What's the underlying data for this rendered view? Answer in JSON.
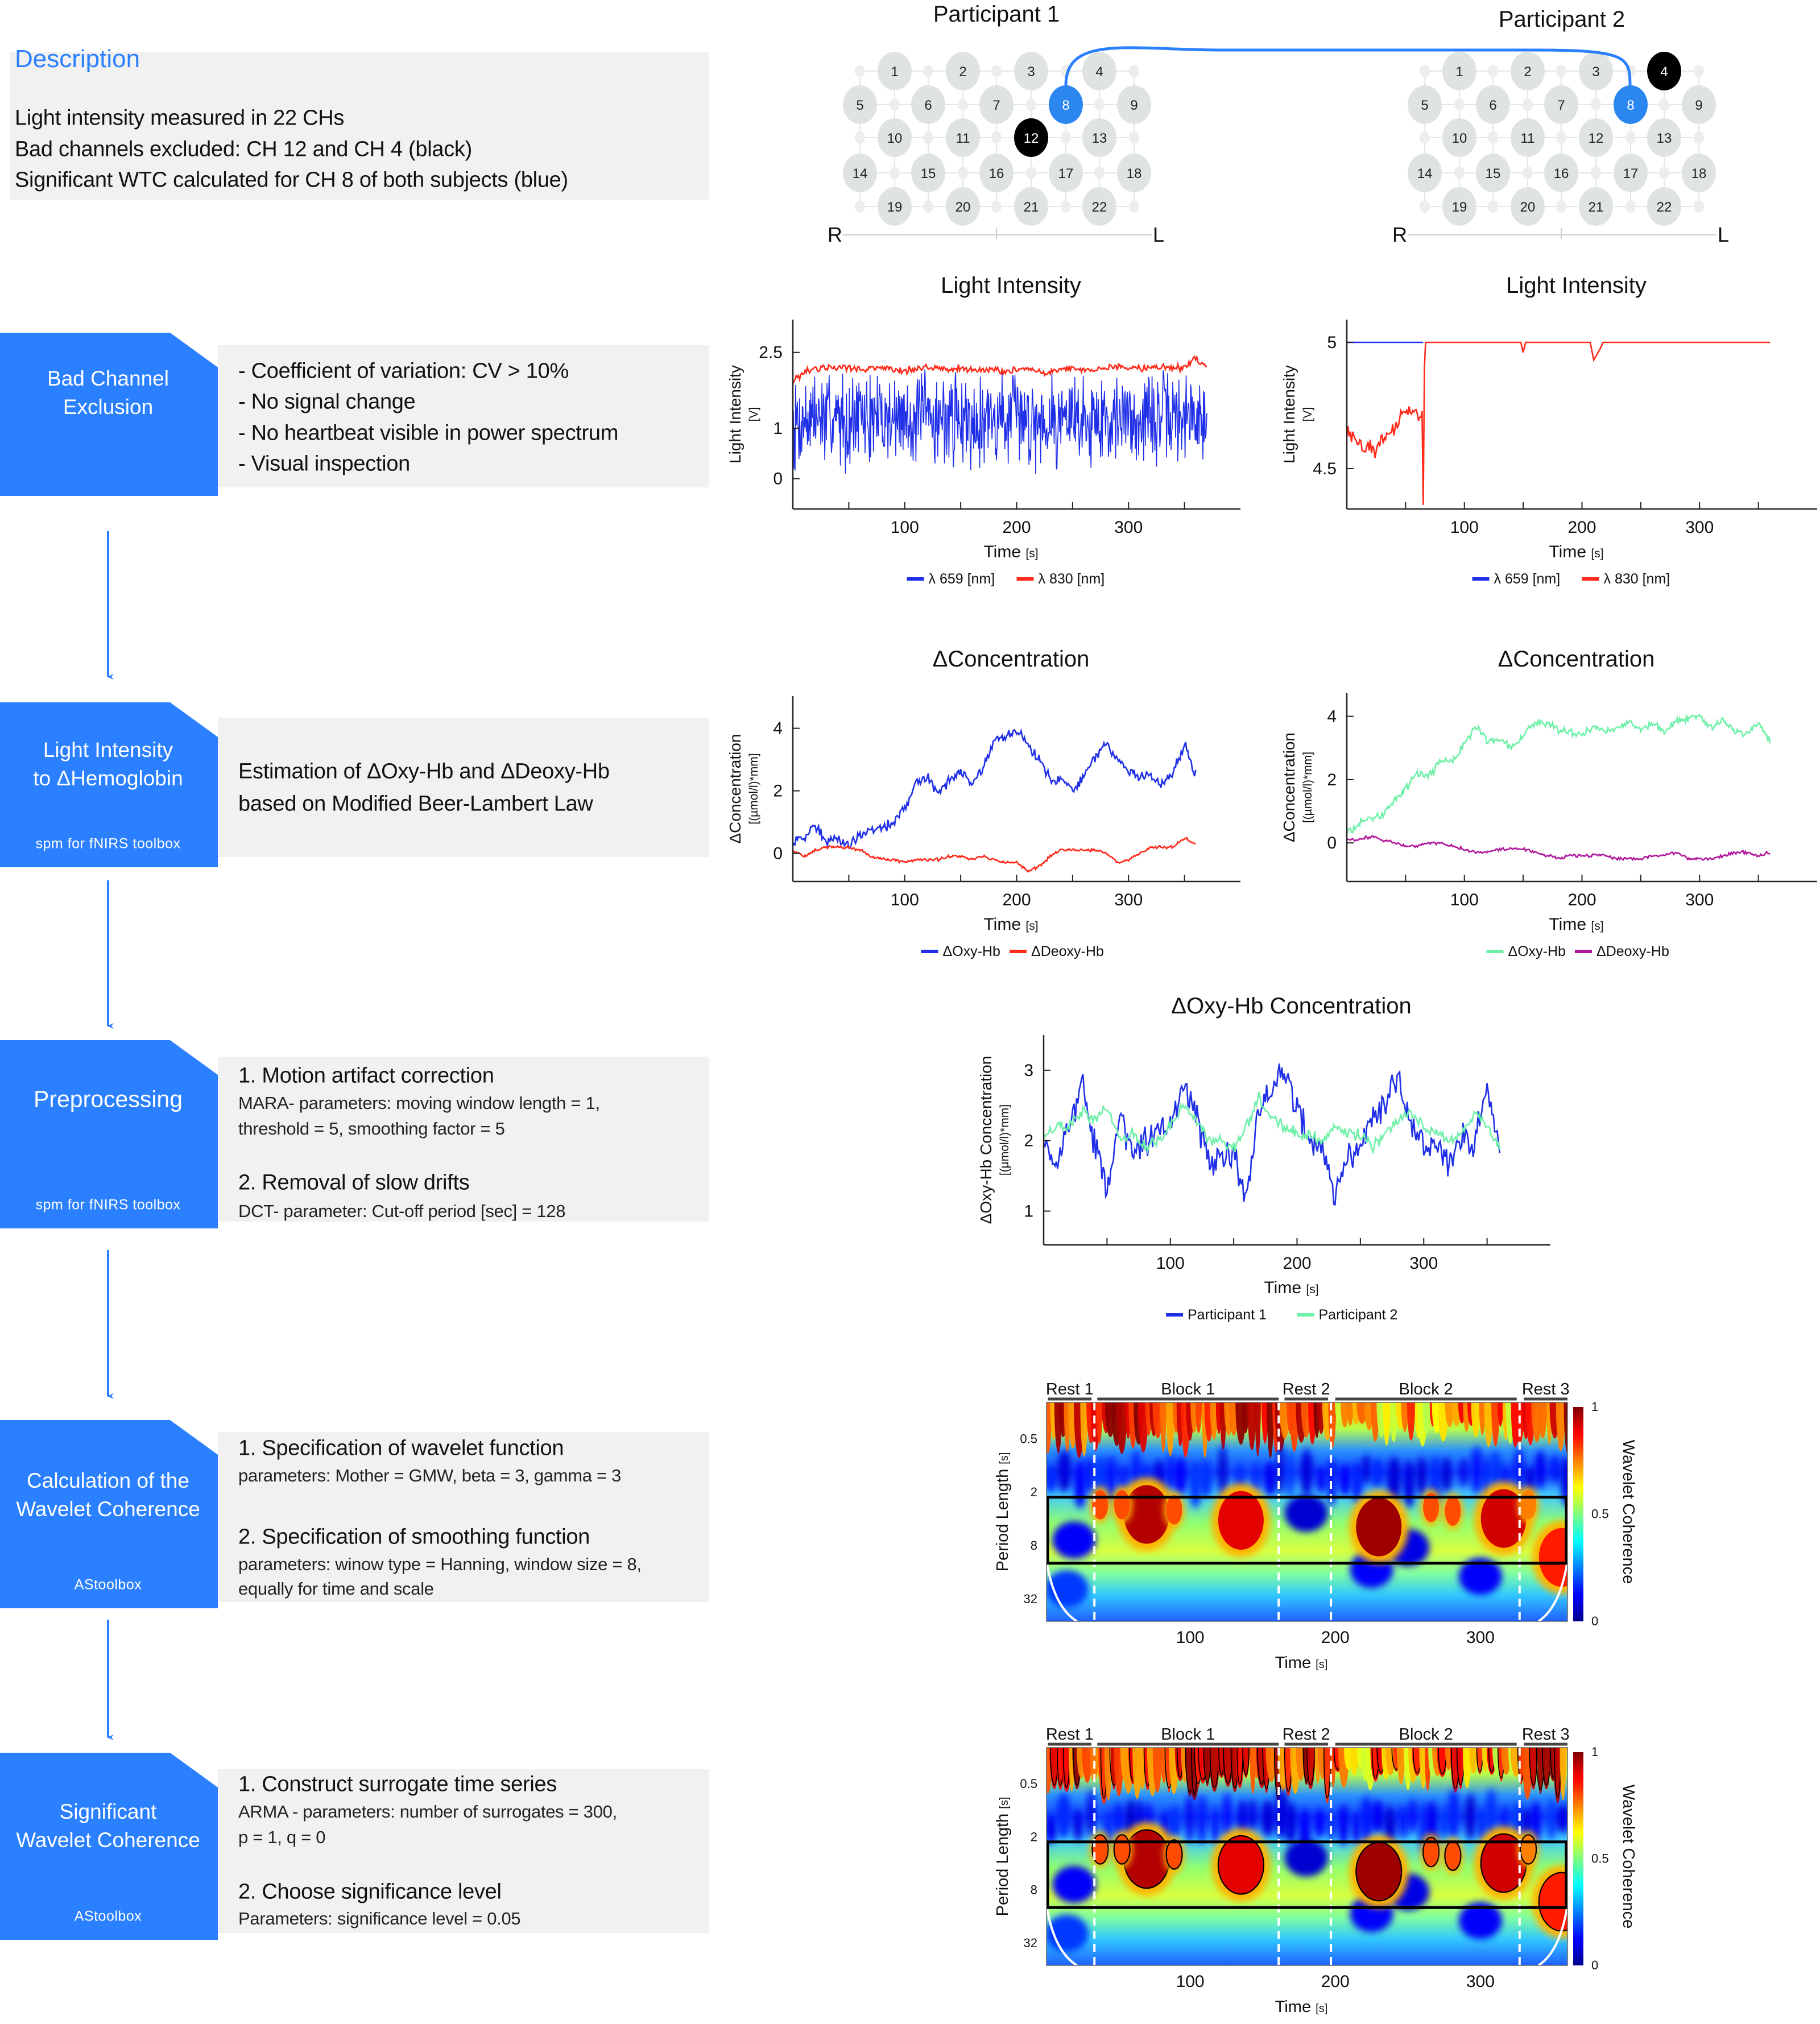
{
  "description": {
    "title": "Description",
    "lines": [
      "Light intensity measured in 22 CHs",
      "Bad channels excluded: CH 12 and CH 4 (black)",
      "Significant WTC calculated for CH 8 of both subjects (blue)"
    ]
  },
  "steps": [
    {
      "title_lines": [
        "Bad Channel",
        "Exclusion"
      ],
      "toolbox": "",
      "content": [
        "- Coefficient of variation: CV > 10%",
        "- No signal change",
        "- No heartbeat visible in power spectrum",
        "- Visual inspection"
      ]
    },
    {
      "title_lines": [
        "Light Intensity",
        "to ΔHemoglobin"
      ],
      "toolbox": "spm for fNIRS toolbox",
      "content": [
        "Estimation of ΔOxy-Hb and ΔDeoxy-Hb",
        "based on Modified Beer-Lambert Law"
      ]
    },
    {
      "title_lines": [
        "Preprocessing"
      ],
      "toolbox": "spm for fNIRS toolbox",
      "content": [
        "1. Motion artifact correction",
        "MARA- parameters: moving window length = 1,",
        "threshold = 5, smoothing factor = 5",
        "2. Removal of slow drifts",
        "DCT- parameter: Cut-off period [sec] = 128"
      ]
    },
    {
      "title_lines": [
        "Calculation of the",
        "Wavelet Coherence"
      ],
      "toolbox": "AStoolbox",
      "content": [
        "1. Specification of wavelet function",
        "parameters: Mother = GMW, beta = 3, gamma = 3",
        "2. Specification of smoothing function",
        "parameters: winow type = Hanning, window size = 8,",
        "equally for time and scale"
      ]
    },
    {
      "title_lines": [
        "Significant",
        "Wavelet Coherence"
      ],
      "toolbox": "AStoolbox",
      "content": [
        "1. Construct surrogate time series",
        "ARMA - parameters: number of surrogates = 300,",
        "p = 1, q = 0",
        "2. Choose significance level",
        "Parameters: significance level = 0.05"
      ]
    }
  ],
  "participants": [
    {
      "title": "Participant 1",
      "channels": [
        1,
        2,
        3,
        4,
        5,
        6,
        7,
        8,
        9,
        10,
        11,
        12,
        13,
        14,
        15,
        16,
        17,
        18,
        19,
        20,
        21,
        22
      ],
      "bad_channels": [
        12
      ],
      "significant_channel": 8,
      "right_label": "R",
      "left_label": "L"
    },
    {
      "title": "Participant 2",
      "channels": [
        1,
        2,
        3,
        4,
        5,
        6,
        7,
        8,
        9,
        10,
        11,
        12,
        13,
        14,
        15,
        16,
        17,
        18,
        19,
        20,
        21,
        22
      ],
      "bad_channels": [
        4
      ],
      "significant_channel": 8,
      "right_label": "R",
      "left_label": "L"
    }
  ],
  "colors": {
    "accent": "#2b80ff",
    "panel": "#f1f1f1",
    "channel": "#dfe4e0",
    "bad_channel": "#000000",
    "significant_channel": "#2b86f0"
  },
  "chart_data": [
    {
      "id": "li_p1",
      "type": "line",
      "title": "Light Intensity",
      "xlabel": "Time",
      "xlabel_unit": "[s]",
      "ylabel": "Light Intensity",
      "ylabel_unit": "[V]",
      "xlim": [
        0,
        400
      ],
      "ylim": [
        -0.6,
        3.15
      ],
      "xticks": [
        100,
        200,
        300
      ],
      "yticks": [
        0,
        1,
        2.5
      ],
      "series": [
        {
          "name": "λ 659 [nm]",
          "color": "#1f2fe8",
          "t_start": 0,
          "t_step": 10,
          "noise": 0.75,
          "values": [
            1.1,
            1.2,
            1.2,
            1.2,
            1.2,
            1.2,
            1.2,
            1.2,
            1.2,
            1.2,
            1.2,
            1.2,
            1.2,
            1.2,
            1.2,
            1.2,
            1.2,
            1.2,
            1.2,
            1.2,
            1.2,
            1.2,
            1.2,
            1.2,
            1.2,
            1.2,
            1.2,
            1.2,
            1.2,
            1.2,
            1.2,
            1.2,
            1.2,
            1.2,
            1.2,
            1.2,
            1.2,
            1.2
          ]
        },
        {
          "name": "λ 830 [nm]",
          "color": "#ff2a1a",
          "t_start": 0,
          "t_step": 10,
          "noise": 0.06,
          "values": [
            1.9,
            2.1,
            2.15,
            2.2,
            2.2,
            2.2,
            2.15,
            2.2,
            2.2,
            2.15,
            2.15,
            2.15,
            2.2,
            2.2,
            2.15,
            2.2,
            2.15,
            2.15,
            2.15,
            2.1,
            2.15,
            2.15,
            2.1,
            2.1,
            2.15,
            2.2,
            2.15,
            2.15,
            2.2,
            2.2,
            2.2,
            2.2,
            2.2,
            2.2,
            2.2,
            2.2,
            2.4,
            2.2
          ]
        }
      ]
    },
    {
      "id": "li_p2",
      "type": "line",
      "title": "Light Intensity",
      "xlabel": "Time",
      "xlabel_unit": "[s]",
      "ylabel": "Light Intensity",
      "ylabel_unit": "[V]",
      "xlim": [
        0,
        400
      ],
      "ylim": [
        4.34,
        5.09
      ],
      "xticks": [
        100,
        200,
        300
      ],
      "yticks": [
        4.5,
        5
      ],
      "series": [
        {
          "name": "λ 659 [nm]",
          "color": "#1f2fe8",
          "points": [
            [
              0,
              5
            ],
            [
              65,
              5
            ]
          ]
        },
        {
          "name": "λ 830 [nm]",
          "color": "#ff2a1a",
          "noise": 0.025,
          "noise_until": 66,
          "points": [
            [
              0,
              4.64
            ],
            [
              5,
              4.62
            ],
            [
              10,
              4.6
            ],
            [
              15,
              4.58
            ],
            [
              20,
              4.6
            ],
            [
              25,
              4.56
            ],
            [
              30,
              4.62
            ],
            [
              35,
              4.63
            ],
            [
              40,
              4.66
            ],
            [
              45,
              4.7
            ],
            [
              50,
              4.72
            ],
            [
              55,
              4.74
            ],
            [
              60,
              4.72
            ],
            [
              64,
              4.7
            ],
            [
              65,
              4.34
            ],
            [
              66,
              4.9
            ],
            [
              67,
              5
            ],
            [
              148,
              5
            ],
            [
              150,
              4.96
            ],
            [
              152,
              5
            ],
            [
              207,
              5
            ],
            [
              210,
              4.93
            ],
            [
              215,
              4.97
            ],
            [
              218,
              5
            ],
            [
              360,
              5
            ]
          ]
        }
      ]
    },
    {
      "id": "conc_p1",
      "type": "line",
      "title": "ΔConcentration",
      "xlabel": "Time",
      "xlabel_unit": "[s]",
      "ylabel": "ΔConcentration",
      "ylabel_unit": "[(µmol/l)*mm]",
      "xlim": [
        0,
        400
      ],
      "ylim": [
        -0.9,
        5.03
      ],
      "xticks": [
        100,
        200,
        300
      ],
      "yticks": [
        0,
        2,
        4
      ],
      "series": [
        {
          "name": "ΔOxy-Hb",
          "color": "#1f2fe8",
          "t_start": 0,
          "t_step": 10,
          "noise": 0.15,
          "values": [
            0.3,
            0.5,
            0.9,
            0.4,
            0.5,
            0.3,
            0.5,
            0.7,
            0.8,
            1.0,
            1.5,
            2.3,
            2.4,
            2.0,
            2.3,
            2.6,
            2.2,
            2.7,
            3.5,
            3.7,
            4.0,
            3.5,
            3.0,
            2.4,
            2.3,
            2.0,
            2.5,
            3.1,
            3.5,
            3.0,
            2.6,
            2.4,
            2.5,
            2.2,
            2.6,
            3.5,
            2.5
          ]
        },
        {
          "name": "ΔDeoxy-Hb",
          "color": "#ff2a1a",
          "t_start": 0,
          "t_step": 10,
          "noise": 0.04,
          "values": [
            0.1,
            -0.1,
            0.1,
            0.2,
            0.2,
            0.2,
            0.1,
            -0.1,
            -0.2,
            -0.2,
            -0.3,
            -0.2,
            -0.2,
            -0.2,
            -0.1,
            -0.1,
            -0.2,
            -0.1,
            -0.2,
            -0.3,
            -0.3,
            -0.6,
            -0.4,
            -0.1,
            0.1,
            0.1,
            0.1,
            0.1,
            0.0,
            -0.3,
            -0.2,
            0.0,
            0.2,
            0.2,
            0.2,
            0.5,
            0.3
          ]
        }
      ]
    },
    {
      "id": "conc_p2",
      "type": "line",
      "title": "ΔConcentration",
      "xlabel": "Time",
      "xlabel_unit": "[s]",
      "ylabel": "ΔConcentration",
      "ylabel_unit": "[(µmol/l)*mm]",
      "xlim": [
        0,
        400
      ],
      "ylim": [
        -1.22,
        4.73
      ],
      "xticks": [
        100,
        200,
        300
      ],
      "yticks": [
        0,
        2,
        4
      ],
      "series": [
        {
          "name": "ΔOxy-Hb",
          "color": "#6ff0a8",
          "t_start": 0,
          "t_step": 10,
          "noise": 0.1,
          "values": [
            0.3,
            0.6,
            0.8,
            0.9,
            1.3,
            1.7,
            2.2,
            2.1,
            2.6,
            2.6,
            3.1,
            3.7,
            3.2,
            3.3,
            3.0,
            3.4,
            3.8,
            3.8,
            3.6,
            3.5,
            3.4,
            3.7,
            3.5,
            3.6,
            3.8,
            3.6,
            3.8,
            3.5,
            3.9,
            3.9,
            4.0,
            3.6,
            3.9,
            3.5,
            3.4,
            3.8,
            3.2
          ]
        },
        {
          "name": "ΔDeoxy-Hb",
          "color": "#b0189c",
          "t_start": 0,
          "t_step": 10,
          "noise": 0.04,
          "values": [
            0.1,
            0.1,
            0.2,
            0.1,
            0,
            -0.1,
            -0.1,
            0,
            0.0,
            -0.1,
            -0.2,
            -0.3,
            -0.3,
            -0.2,
            -0.2,
            -0.2,
            -0.3,
            -0.4,
            -0.5,
            -0.4,
            -0.4,
            -0.4,
            -0.4,
            -0.5,
            -0.5,
            -0.5,
            -0.4,
            -0.4,
            -0.3,
            -0.5,
            -0.5,
            -0.5,
            -0.4,
            -0.3,
            -0.3,
            -0.4,
            -0.3
          ]
        }
      ]
    },
    {
      "id": "oxy",
      "type": "line",
      "title": "ΔOxy-Hb Concentration",
      "xlabel": "Time",
      "xlabel_unit": "[s]",
      "ylabel": "ΔOxy-Hb Concentration",
      "ylabel_unit": "[(µmol/l)*mm]",
      "xlim": [
        0,
        400
      ],
      "ylim": [
        0.52,
        3.5
      ],
      "xticks": [
        100,
        200,
        300
      ],
      "yticks": [
        1,
        2,
        3
      ],
      "series": [
        {
          "name": "Participant 1",
          "color": "#1f2fe8",
          "t_start": 0,
          "t_step": 10,
          "noise": 0.18,
          "values": [
            2.0,
            1.7,
            2.1,
            2.8,
            2.0,
            1.3,
            2.3,
            1.9,
            2.0,
            2.1,
            2.2,
            2.7,
            2.4,
            1.7,
            1.7,
            1.8,
            1.2,
            2.4,
            2.7,
            3.0,
            2.5,
            2.0,
            1.9,
            1.3,
            1.8,
            1.9,
            2.3,
            2.5,
            2.9,
            2.3,
            1.9,
            1.9,
            1.6,
            2.0,
            1.9,
            2.8,
            1.8
          ]
        },
        {
          "name": "Participant 2",
          "color": "#6ff0a8",
          "t_start": 0,
          "t_step": 10,
          "noise": 0.07,
          "values": [
            2.1,
            2.2,
            2.2,
            2.4,
            2.3,
            2.5,
            2.0,
            2.1,
            1.9,
            2.0,
            2.2,
            2.5,
            2.3,
            2.0,
            2.0,
            1.9,
            2.2,
            2.6,
            2.3,
            2.2,
            2.1,
            2.1,
            2.0,
            2.2,
            2.1,
            2.1,
            1.9,
            2.1,
            2.3,
            2.4,
            2.2,
            2.1,
            2.0,
            2.1,
            2.4,
            2.2,
            1.9
          ]
        }
      ]
    },
    {
      "id": "wtc",
      "type": "heatmap",
      "xlabel": "Time",
      "xlabel_unit": "[s]",
      "ylabel": "Period Length",
      "ylabel_unit": "[s]",
      "xlim": [
        1,
        360
      ],
      "period_range": [
        0.196,
        58
      ],
      "y_scale": "log2",
      "xticks": [
        100,
        200,
        300
      ],
      "yticks": [
        0.5,
        2,
        8,
        32
      ],
      "colorbar": {
        "label": "Wavelet Coherence",
        "ticks": [
          0,
          0.5,
          1
        ]
      },
      "segments": [
        {
          "label": "Rest 1",
          "start": 2,
          "end": 32
        },
        {
          "label": "Block 1",
          "start": 36,
          "end": 161
        },
        {
          "label": "Rest 2",
          "start": 165,
          "end": 195
        },
        {
          "label": "Block 2",
          "start": 200,
          "end": 325
        },
        {
          "label": "Rest 3",
          "start": 330,
          "end": 360
        }
      ],
      "boundaries": [
        34,
        161,
        197,
        327
      ],
      "roi_period": [
        2.3,
        12.8
      ],
      "high_coherence": [
        {
          "t": 70,
          "period": 3.6,
          "coherence": 0.95
        },
        {
          "t": 135,
          "period": 4.2,
          "coherence": 0.9
        },
        {
          "t": 230,
          "period": 5.0,
          "coherence": 0.97
        },
        {
          "t": 316,
          "period": 4.0,
          "coherence": 0.92
        },
        {
          "t": 356,
          "period": 11,
          "coherence": 0.85
        },
        {
          "t": 38,
          "period": 2.8,
          "coherence": 0.8
        },
        {
          "t": 53,
          "period": 2.8,
          "coherence": 0.8
        },
        {
          "t": 89,
          "period": 3.2,
          "coherence": 0.8
        },
        {
          "t": 266,
          "period": 3.0,
          "coherence": 0.8
        },
        {
          "t": 281,
          "period": 3.3,
          "coherence": 0.8
        },
        {
          "t": 333,
          "period": 2.8,
          "coherence": 0.75
        }
      ],
      "low_coherence": [
        {
          "t": 180,
          "period": 3.5,
          "coherence": 0.08
        },
        {
          "t": 250,
          "period": 8.5,
          "coherence": 0.1
        },
        {
          "t": 300,
          "period": 18,
          "coherence": 0.12
        },
        {
          "t": 15,
          "period": 25,
          "coherence": 0.18
        },
        {
          "t": 225,
          "period": 15,
          "coherence": 0.12
        },
        {
          "t": 20,
          "period": 7,
          "coherence": 0.12
        }
      ],
      "significance_contours": false
    },
    {
      "id": "wtc_sig",
      "type": "heatmap",
      "xlabel": "Time",
      "xlabel_unit": "[s]",
      "ylabel": "Period Length",
      "ylabel_unit": "[s]",
      "xlim": [
        1,
        360
      ],
      "period_range": [
        0.196,
        58
      ],
      "y_scale": "log2",
      "xticks": [
        100,
        200,
        300
      ],
      "yticks": [
        0.5,
        2,
        8,
        32
      ],
      "colorbar": {
        "label": "Wavelet Coherence",
        "ticks": [
          0,
          0.5,
          1
        ]
      },
      "segments": [
        {
          "label": "Rest 1",
          "start": 2,
          "end": 32
        },
        {
          "label": "Block 1",
          "start": 36,
          "end": 161
        },
        {
          "label": "Rest 2",
          "start": 165,
          "end": 195
        },
        {
          "label": "Block 2",
          "start": 200,
          "end": 325
        },
        {
          "label": "Rest 3",
          "start": 330,
          "end": 360
        }
      ],
      "boundaries": [
        34,
        161,
        197,
        327
      ],
      "roi_period": [
        2.3,
        12.8
      ],
      "high_coherence": [
        {
          "t": 70,
          "period": 3.6,
          "coherence": 0.95
        },
        {
          "t": 135,
          "period": 4.2,
          "coherence": 0.9
        },
        {
          "t": 230,
          "period": 5.0,
          "coherence": 0.97
        },
        {
          "t": 316,
          "period": 4.0,
          "coherence": 0.92
        },
        {
          "t": 356,
          "period": 11,
          "coherence": 0.85
        },
        {
          "t": 38,
          "period": 2.8,
          "coherence": 0.8
        },
        {
          "t": 53,
          "period": 2.8,
          "coherence": 0.8
        },
        {
          "t": 89,
          "period": 3.2,
          "coherence": 0.8
        },
        {
          "t": 266,
          "period": 3.0,
          "coherence": 0.8
        },
        {
          "t": 281,
          "period": 3.3,
          "coherence": 0.8
        },
        {
          "t": 333,
          "period": 2.8,
          "coherence": 0.75
        }
      ],
      "low_coherence": [
        {
          "t": 180,
          "period": 3.5,
          "coherence": 0.08
        },
        {
          "t": 250,
          "period": 8.5,
          "coherence": 0.1
        },
        {
          "t": 300,
          "period": 18,
          "coherence": 0.12
        },
        {
          "t": 15,
          "period": 25,
          "coherence": 0.18
        },
        {
          "t": 225,
          "period": 15,
          "coherence": 0.12
        },
        {
          "t": 20,
          "period": 7,
          "coherence": 0.12
        }
      ],
      "significance_contours": true
    }
  ]
}
